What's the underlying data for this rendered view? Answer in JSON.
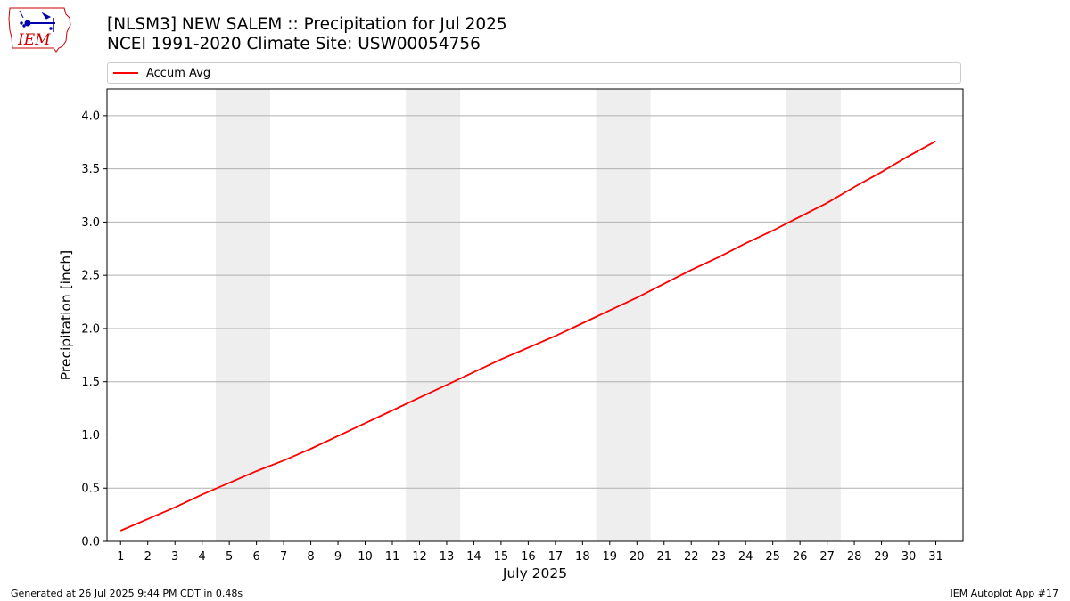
{
  "header": {
    "title_line1": "[NLSM3] NEW SALEM :: Precipitation for Jul 2025",
    "title_line2": "NCEI 1991-2020 Climate Site: USW00054756"
  },
  "logo": {
    "text": "IEM",
    "icon": "iem-iowa-logo",
    "accent": "#cc0000",
    "secondary": "#0000aa"
  },
  "footer": {
    "left": "Generated at 26 Jul 2025 9:44 PM CDT in 0.48s",
    "right": "IEM Autoplot App #17"
  },
  "chart_data": {
    "type": "line",
    "xlabel": "July 2025",
    "ylabel": "Precipitation [inch]",
    "xlim": [
      0.5,
      32
    ],
    "ylim": [
      0,
      4.25
    ],
    "x_ticks": [
      1,
      2,
      3,
      4,
      5,
      6,
      7,
      8,
      9,
      10,
      11,
      12,
      13,
      14,
      15,
      16,
      17,
      18,
      19,
      20,
      21,
      22,
      23,
      24,
      25,
      26,
      27,
      28,
      29,
      30,
      31
    ],
    "x_tick_labels": [
      "1",
      "2",
      "3",
      "4",
      "5",
      "6",
      "7",
      "8",
      "9",
      "10",
      "11",
      "12",
      "13",
      "14",
      "15",
      "16",
      "17",
      "18",
      "19",
      "20",
      "21",
      "22",
      "23",
      "24",
      "25",
      "26",
      "27",
      "28",
      "29",
      "30",
      "31"
    ],
    "y_ticks": [
      0.0,
      0.5,
      1.0,
      1.5,
      2.0,
      2.5,
      3.0,
      3.5,
      4.0
    ],
    "y_tick_labels": [
      "0.0",
      "0.5",
      "1.0",
      "1.5",
      "2.0",
      "2.5",
      "3.0",
      "3.5",
      "4.0"
    ],
    "grid": "horizontal",
    "legend_placement": "top",
    "weekend_bands": [
      [
        4.5,
        6.5
      ],
      [
        11.5,
        13.5
      ],
      [
        18.5,
        20.5
      ],
      [
        25.5,
        27.5
      ]
    ],
    "band_color": "#eeeeee",
    "series": [
      {
        "name": "Accum Avg",
        "color": "#ff0000",
        "x": [
          1,
          2,
          3,
          4,
          5,
          6,
          7,
          8,
          9,
          10,
          11,
          12,
          13,
          14,
          15,
          16,
          17,
          18,
          19,
          20,
          21,
          22,
          23,
          24,
          25,
          26,
          27,
          28,
          29,
          30,
          31
        ],
        "values": [
          0.1,
          0.21,
          0.32,
          0.44,
          0.55,
          0.66,
          0.76,
          0.87,
          0.99,
          1.11,
          1.23,
          1.35,
          1.47,
          1.59,
          1.71,
          1.82,
          1.93,
          2.05,
          2.17,
          2.29,
          2.42,
          2.55,
          2.67,
          2.8,
          2.92,
          3.05,
          3.18,
          3.33,
          3.47,
          3.62,
          3.76
        ]
      }
    ]
  }
}
